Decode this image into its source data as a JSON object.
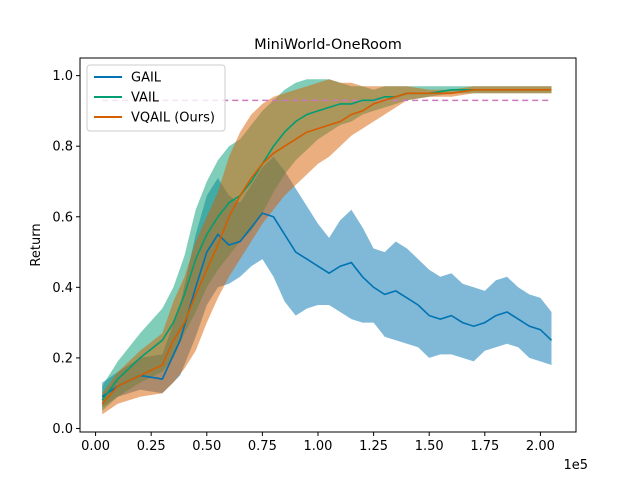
{
  "chart_data": {
    "type": "line",
    "title": "MiniWorld-OneRoom",
    "xlabel": "",
    "ylabel": "Return",
    "x_offset_label": "1e5",
    "xlim": [
      -0.07,
      2.16
    ],
    "ylim": [
      -0.01,
      1.05
    ],
    "xticks": [
      0.0,
      0.25,
      0.5,
      0.75,
      1.0,
      1.25,
      1.5,
      1.75,
      2.0
    ],
    "xtick_labels": [
      "0.00",
      "0.25",
      "0.50",
      "0.75",
      "1.00",
      "1.25",
      "1.50",
      "1.75",
      "2.00"
    ],
    "yticks": [
      0.0,
      0.2,
      0.4,
      0.6,
      0.8,
      1.0
    ],
    "ytick_labels": [
      "0.0",
      "0.2",
      "0.4",
      "0.6",
      "0.8",
      "1.0"
    ],
    "legend_position": "top-left",
    "reference_line": {
      "y": 0.93,
      "color": "#cc78bc",
      "style": "dashed"
    },
    "series": [
      {
        "name": "GAIL",
        "color": "#0173b2",
        "x": [
          0.03,
          0.1,
          0.2,
          0.3,
          0.38,
          0.45,
          0.5,
          0.55,
          0.6,
          0.65,
          0.7,
          0.75,
          0.8,
          0.85,
          0.9,
          0.95,
          1.0,
          1.05,
          1.1,
          1.15,
          1.2,
          1.25,
          1.3,
          1.35,
          1.4,
          1.45,
          1.5,
          1.55,
          1.6,
          1.65,
          1.7,
          1.75,
          1.8,
          1.85,
          1.9,
          1.95,
          2.0,
          2.05
        ],
        "y": [
          0.09,
          0.12,
          0.15,
          0.14,
          0.25,
          0.4,
          0.5,
          0.55,
          0.52,
          0.53,
          0.57,
          0.61,
          0.6,
          0.55,
          0.5,
          0.48,
          0.46,
          0.44,
          0.46,
          0.47,
          0.43,
          0.4,
          0.38,
          0.39,
          0.37,
          0.35,
          0.32,
          0.31,
          0.32,
          0.3,
          0.29,
          0.3,
          0.32,
          0.33,
          0.31,
          0.29,
          0.28,
          0.25
        ],
        "lower": [
          0.06,
          0.09,
          0.11,
          0.1,
          0.15,
          0.26,
          0.35,
          0.4,
          0.41,
          0.43,
          0.46,
          0.48,
          0.43,
          0.36,
          0.32,
          0.34,
          0.35,
          0.35,
          0.33,
          0.31,
          0.3,
          0.3,
          0.26,
          0.25,
          0.24,
          0.23,
          0.2,
          0.21,
          0.21,
          0.2,
          0.19,
          0.22,
          0.23,
          0.24,
          0.23,
          0.2,
          0.19,
          0.18
        ],
        "upper": [
          0.13,
          0.16,
          0.2,
          0.21,
          0.35,
          0.55,
          0.66,
          0.71,
          0.66,
          0.64,
          0.69,
          0.74,
          0.77,
          0.73,
          0.68,
          0.63,
          0.58,
          0.54,
          0.59,
          0.62,
          0.57,
          0.51,
          0.5,
          0.53,
          0.51,
          0.48,
          0.45,
          0.43,
          0.44,
          0.41,
          0.4,
          0.39,
          0.42,
          0.43,
          0.4,
          0.38,
          0.37,
          0.33
        ]
      },
      {
        "name": "VAIL",
        "color": "#029e73",
        "x": [
          0.03,
          0.1,
          0.2,
          0.3,
          0.35,
          0.4,
          0.45,
          0.5,
          0.55,
          0.6,
          0.65,
          0.7,
          0.75,
          0.8,
          0.85,
          0.9,
          0.95,
          1.0,
          1.05,
          1.1,
          1.15,
          1.2,
          1.25,
          1.3,
          1.35,
          1.4,
          1.5,
          1.6,
          1.7,
          1.8,
          1.9,
          2.0,
          2.05
        ],
        "y": [
          0.08,
          0.14,
          0.2,
          0.25,
          0.3,
          0.38,
          0.48,
          0.55,
          0.6,
          0.64,
          0.66,
          0.7,
          0.75,
          0.8,
          0.84,
          0.87,
          0.89,
          0.9,
          0.91,
          0.92,
          0.92,
          0.93,
          0.93,
          0.94,
          0.94,
          0.95,
          0.95,
          0.96,
          0.96,
          0.96,
          0.96,
          0.96,
          0.96
        ],
        "lower": [
          0.05,
          0.09,
          0.13,
          0.16,
          0.2,
          0.27,
          0.33,
          0.4,
          0.45,
          0.49,
          0.53,
          0.56,
          0.61,
          0.67,
          0.72,
          0.76,
          0.79,
          0.82,
          0.84,
          0.86,
          0.87,
          0.89,
          0.9,
          0.91,
          0.92,
          0.93,
          0.94,
          0.95,
          0.95,
          0.95,
          0.95,
          0.95,
          0.95
        ],
        "upper": [
          0.12,
          0.19,
          0.27,
          0.34,
          0.4,
          0.49,
          0.62,
          0.7,
          0.76,
          0.8,
          0.82,
          0.86,
          0.9,
          0.93,
          0.96,
          0.98,
          0.99,
          0.99,
          0.99,
          0.98,
          0.97,
          0.97,
          0.96,
          0.97,
          0.97,
          0.97,
          0.97,
          0.97,
          0.97,
          0.97,
          0.97,
          0.97,
          0.97
        ]
      },
      {
        "name": "VQAIL (Ours)",
        "color": "#d55e00",
        "x": [
          0.03,
          0.1,
          0.2,
          0.3,
          0.35,
          0.4,
          0.45,
          0.5,
          0.55,
          0.6,
          0.65,
          0.7,
          0.75,
          0.8,
          0.85,
          0.9,
          0.95,
          1.0,
          1.05,
          1.1,
          1.15,
          1.2,
          1.25,
          1.3,
          1.35,
          1.4,
          1.5,
          1.6,
          1.7,
          1.8,
          1.9,
          2.0,
          2.05
        ],
        "y": [
          0.07,
          0.12,
          0.15,
          0.18,
          0.25,
          0.3,
          0.38,
          0.45,
          0.52,
          0.6,
          0.66,
          0.71,
          0.75,
          0.78,
          0.8,
          0.82,
          0.84,
          0.85,
          0.86,
          0.87,
          0.89,
          0.9,
          0.92,
          0.93,
          0.94,
          0.95,
          0.95,
          0.95,
          0.96,
          0.96,
          0.96,
          0.96,
          0.96
        ],
        "lower": [
          0.04,
          0.07,
          0.09,
          0.1,
          0.13,
          0.17,
          0.22,
          0.3,
          0.37,
          0.43,
          0.48,
          0.53,
          0.58,
          0.62,
          0.66,
          0.69,
          0.72,
          0.75,
          0.77,
          0.8,
          0.83,
          0.85,
          0.87,
          0.89,
          0.91,
          0.93,
          0.94,
          0.94,
          0.95,
          0.95,
          0.95,
          0.95,
          0.95
        ],
        "upper": [
          0.1,
          0.16,
          0.22,
          0.27,
          0.36,
          0.43,
          0.53,
          0.6,
          0.67,
          0.77,
          0.84,
          0.89,
          0.92,
          0.94,
          0.95,
          0.96,
          0.97,
          0.98,
          0.99,
          0.98,
          0.98,
          0.97,
          0.97,
          0.97,
          0.97,
          0.97,
          0.96,
          0.96,
          0.97,
          0.97,
          0.97,
          0.97,
          0.97
        ]
      }
    ]
  }
}
